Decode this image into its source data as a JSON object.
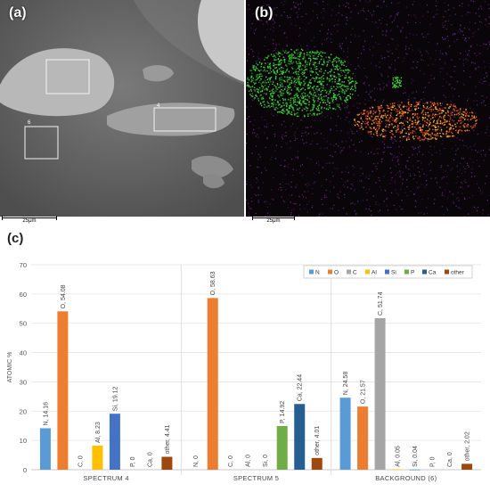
{
  "panels": {
    "a": {
      "tag": "(a)",
      "scale": "25μm",
      "box_labels": [
        "4",
        "6"
      ]
    },
    "b": {
      "tag": "(b)",
      "scale": "25μm"
    },
    "c": {
      "tag": "(c)"
    }
  },
  "chart_data": {
    "type": "bar",
    "ylabel": "ATOMIC %",
    "ylim": [
      0,
      70
    ],
    "yticks": [
      0,
      10,
      20,
      30,
      40,
      50,
      60,
      70
    ],
    "grid": true,
    "legend_position": "top-right",
    "categories": [
      "SPECTRUM 4",
      "SPECTRUM 5",
      "BACKGROUND (6)"
    ],
    "series": [
      {
        "name": "N",
        "color": "#5b9bd5",
        "values": [
          14.16,
          0,
          24.58
        ],
        "labels": [
          "N, 14.16",
          "N, 0",
          "N, 24.58"
        ]
      },
      {
        "name": "O",
        "color": "#ed7d31",
        "values": [
          54.08,
          58.63,
          21.57
        ],
        "labels": [
          "O, 54.08",
          "O, 58.63",
          "O, 21.57"
        ]
      },
      {
        "name": "C",
        "color": "#a5a5a5",
        "values": [
          0,
          0,
          51.74
        ],
        "labels": [
          "C, 0",
          "C, 0",
          "C, 51.74"
        ]
      },
      {
        "name": "Al",
        "color": "#ffc000",
        "values": [
          8.23,
          0,
          0.05
        ],
        "labels": [
          "Al, 8.23",
          "Al, 0",
          "Al, 0.05"
        ]
      },
      {
        "name": "Si",
        "color": "#4472c4",
        "values": [
          19.12,
          0,
          0.04
        ],
        "labels": [
          "Si, 19.12",
          "Si, 0",
          "Si, 0.04"
        ]
      },
      {
        "name": "P",
        "color": "#70ad47",
        "values": [
          0,
          14.92,
          0
        ],
        "labels": [
          "P, 0",
          "P, 14.92",
          "P, 0"
        ]
      },
      {
        "name": "Ca",
        "color": "#255e91",
        "values": [
          0,
          22.44,
          0
        ],
        "labels": [
          "Ca, 0",
          "Ca, 22.44",
          "Ca, 0"
        ]
      },
      {
        "name": "other",
        "color": "#9e480e",
        "values": [
          4.41,
          4.01,
          2.02
        ],
        "labels": [
          "other, 4.41",
          "other, 4.01",
          "other, 2.02"
        ]
      }
    ]
  }
}
